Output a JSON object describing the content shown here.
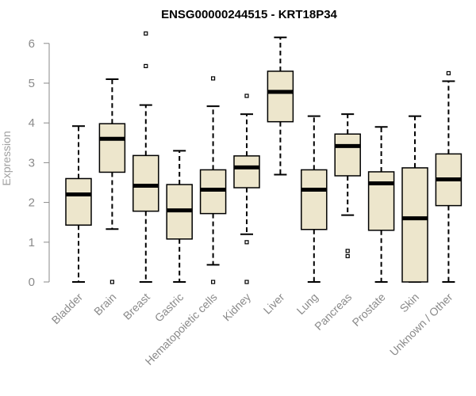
{
  "colors": {
    "box_fill": "#ede6cc",
    "box_stroke": "#000000",
    "axis": "#8a8a8a",
    "label": "#a0a0a0"
  },
  "chart_data": {
    "type": "boxplot",
    "title": "ENSG00000244515 - KRT18P34",
    "xlabel": "",
    "ylabel": "Expression",
    "ylim": [
      0,
      6.25
    ],
    "yticks": [
      0,
      1,
      2,
      3,
      4,
      5,
      6
    ],
    "grid": false,
    "categories": [
      "Bladder",
      "Brain",
      "Breast",
      "Gastric",
      "Hematopoietic cells",
      "Kidney",
      "Liver",
      "Lung",
      "Pancreas",
      "Prostate",
      "Skin",
      "Unknown / Other"
    ],
    "boxes": [
      {
        "label": "Bladder",
        "min": 0,
        "q1": 1.43,
        "median": 2.2,
        "q3": 2.6,
        "max": 3.92,
        "outliers": []
      },
      {
        "label": "Brain",
        "min": 1.33,
        "q1": 2.76,
        "median": 3.6,
        "q3": 3.98,
        "max": 5.1,
        "outliers": [
          0
        ]
      },
      {
        "label": "Breast",
        "min": 0,
        "q1": 1.78,
        "median": 2.42,
        "q3": 3.18,
        "max": 4.45,
        "outliers": [
          5.43,
          6.25
        ]
      },
      {
        "label": "Gastric",
        "min": 0,
        "q1": 1.08,
        "median": 1.8,
        "q3": 2.45,
        "max": 3.3,
        "outliers": []
      },
      {
        "label": "Hematopoietic cells",
        "min": 0.43,
        "q1": 1.72,
        "median": 2.32,
        "q3": 2.82,
        "max": 4.42,
        "outliers": [
          0,
          5.12
        ]
      },
      {
        "label": "Kidney",
        "min": 1.2,
        "q1": 2.37,
        "median": 2.88,
        "q3": 3.17,
        "max": 4.22,
        "outliers": [
          0,
          1.0,
          4.68
        ]
      },
      {
        "label": "Liver",
        "min": 2.7,
        "q1": 4.03,
        "median": 4.78,
        "q3": 5.3,
        "max": 6.15,
        "outliers": []
      },
      {
        "label": "Lung",
        "min": 0,
        "q1": 1.32,
        "median": 2.32,
        "q3": 2.82,
        "max": 4.17,
        "outliers": []
      },
      {
        "label": "Pancreas",
        "min": 1.68,
        "q1": 2.67,
        "median": 3.42,
        "q3": 3.72,
        "max": 4.22,
        "outliers": [
          0.65,
          0.78
        ]
      },
      {
        "label": "Prostate",
        "min": 0,
        "q1": 1.3,
        "median": 2.48,
        "q3": 2.77,
        "max": 3.9,
        "outliers": []
      },
      {
        "label": "Skin",
        "min": 0,
        "q1": 0,
        "median": 1.6,
        "q3": 2.87,
        "max": 4.17,
        "outliers": []
      },
      {
        "label": "Unknown / Other",
        "min": 0,
        "q1": 1.92,
        "median": 2.58,
        "q3": 3.22,
        "max": 5.05,
        "outliers": [
          5.25
        ]
      }
    ]
  }
}
